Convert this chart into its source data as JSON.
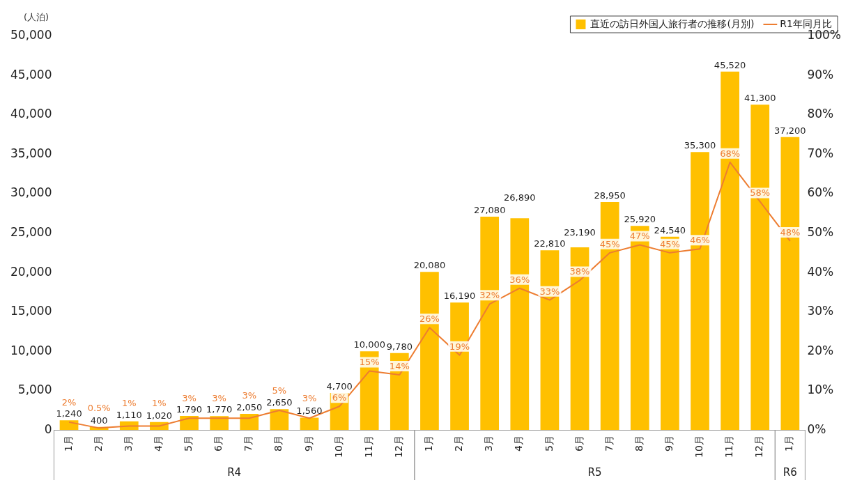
{
  "chart_data": {
    "type": "bar",
    "ylabel": "(人泊)",
    "categories": [
      "1月",
      "2月",
      "3月",
      "4月",
      "5月",
      "6月",
      "7月",
      "8月",
      "9月",
      "10月",
      "11月",
      "12月",
      "1月",
      "2月",
      "3月",
      "4月",
      "5月",
      "6月",
      "7月",
      "8月",
      "9月",
      "10月",
      "11月",
      "12月",
      "1月"
    ],
    "series": [
      {
        "name": "直近の訪日外国人旅行者の推移(月別)",
        "color": "#ffc000",
        "values": [
          1240,
          400,
          1110,
          1020,
          1790,
          1770,
          2050,
          2650,
          1560,
          4700,
          10000,
          9780,
          20080,
          16190,
          27080,
          26890,
          22810,
          23190,
          28950,
          25920,
          24540,
          35300,
          45520,
          41300,
          37200
        ],
        "value_labels": [
          "1,240",
          "400",
          "1,110",
          "1,020",
          "1,790",
          "1,770",
          "2,050",
          "2,650",
          "1,560",
          "4,700",
          "10,000",
          "9,780",
          "20,080",
          "16,190",
          "27,080",
          "26,890",
          "22,810",
          "23,190",
          "28,950",
          "25,920",
          "24,540",
          "35,300",
          "45,520",
          "41,300",
          "37,200"
        ]
      },
      {
        "name": "R1年同月比",
        "type": "line",
        "axis": "y2",
        "color": "#ed7d31",
        "values": [
          2,
          0.5,
          1,
          1,
          3,
          3,
          3,
          5,
          3,
          6,
          15,
          14,
          26,
          19,
          32,
          36,
          33,
          38,
          45,
          47,
          45,
          46,
          68,
          58,
          48
        ],
        "value_labels": [
          "2%",
          "0.5%",
          "1%",
          "1%",
          "3%",
          "3%",
          "3%",
          "5%",
          "3%",
          "6%",
          "15%",
          "14%",
          "26%",
          "19%",
          "32%",
          "36%",
          "33%",
          "38%",
          "45%",
          "47%",
          "45%",
          "46%",
          "68%",
          "58%",
          "48%"
        ]
      }
    ],
    "ylim": [
      0,
      50000
    ],
    "yticks": [
      0,
      {
        "value": 5000,
        "label": "5,000"
      },
      {
        "value": 10000,
        "label": "10,000"
      },
      {
        "value": 15000,
        "label": "15,000"
      },
      {
        "value": 20000,
        "label": "20,000"
      },
      {
        "value": 25000,
        "label": "25,000"
      },
      {
        "value": 30000,
        "label": "30,000"
      },
      {
        "value": 35000,
        "label": "35,000"
      },
      {
        "value": 40000,
        "label": "40,000"
      },
      {
        "value": 45000,
        "label": "45,000"
      },
      {
        "value": 50000,
        "label": "50,000"
      }
    ],
    "y2lim": [
      0,
      100
    ],
    "y2ticks": [
      {
        "value": 0,
        "label": "0%"
      },
      {
        "value": 10,
        "label": "10%"
      },
      {
        "value": 20,
        "label": "20%"
      },
      {
        "value": 30,
        "label": "30%"
      },
      {
        "value": 40,
        "label": "40%"
      },
      {
        "value": 50,
        "label": "50%"
      },
      {
        "value": 60,
        "label": "60%"
      },
      {
        "value": 70,
        "label": "70%"
      },
      {
        "value": 80,
        "label": "80%"
      },
      {
        "value": 90,
        "label": "90%"
      },
      {
        "value": 100,
        "label": "100%"
      }
    ],
    "legend": "top right",
    "marker": "none",
    "line_style": "solid",
    "annotations": [
      "R4",
      "R5",
      "R6"
    ]
  }
}
